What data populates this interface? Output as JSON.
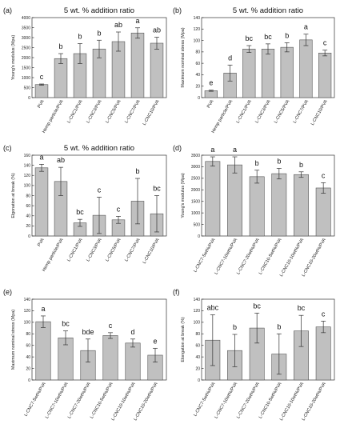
{
  "chart_data": [
    {
      "type": "bar",
      "panel_label": "(a)",
      "title": "5 wt. % addition ratio",
      "ylabel": "Young's modulus (Mpa)",
      "ylim": [
        0,
        4000
      ],
      "yticks": [
        0,
        500,
        1000,
        1500,
        2000,
        2500,
        3000,
        3500,
        4000
      ],
      "categories": [
        "PVA",
        "Hemp particle/PVA",
        "L-CNC1/PVA",
        "L-CNC3/PVA",
        "L-CNC5/PVA",
        "L-CNC7/PVA",
        "L-CNC10/PVA"
      ],
      "values": [
        650,
        1950,
        2200,
        2430,
        2800,
        3230,
        2720
      ],
      "errors": [
        30,
        250,
        500,
        440,
        480,
        260,
        300
      ],
      "letters": [
        "c",
        "b",
        "b",
        "b",
        "ab",
        "a",
        "ab"
      ]
    },
    {
      "type": "bar",
      "panel_label": "(b)",
      "title": "5 wt. % addition ratio",
      "ylabel": "Maximum nominal stress (Mpa)",
      "ylim": [
        0,
        140
      ],
      "yticks": [
        0,
        20,
        40,
        60,
        80,
        100,
        120,
        140
      ],
      "categories": [
        "PVA",
        "Hemp particle/PVA",
        "L-CNC1/PVA",
        "L-CNC3/PVA",
        "L-CNC5/PVA",
        "L-CNC7/PVA",
        "L-CNC10/PVA"
      ],
      "values": [
        12,
        43,
        85,
        85,
        88,
        101,
        78
      ],
      "errors": [
        1,
        14,
        6,
        9,
        8,
        10,
        5
      ],
      "letters": [
        "e",
        "d",
        "bc",
        "bc",
        "b",
        "a",
        "c"
      ]
    },
    {
      "type": "bar",
      "panel_label": "(c)",
      "title": "5 wt. % addition ratio",
      "ylabel": "Elgonation at break (%)",
      "ylim": [
        0,
        160
      ],
      "yticks": [
        0,
        20,
        40,
        60,
        80,
        100,
        120,
        140,
        160
      ],
      "categories": [
        "PVA",
        "Hemp particle/PVA",
        "L-CNC1/PVA",
        "L-CNC3/PVA",
        "L-CNC5/PVA",
        "L-CNC7/PVA",
        "L-CNC10/PVA"
      ],
      "values": [
        135,
        108,
        26,
        41,
        32,
        69,
        44
      ],
      "errors": [
        7,
        28,
        7,
        36,
        7,
        45,
        36
      ],
      "letters": [
        "a",
        "ab",
        "bc",
        "c",
        "c",
        "b",
        "bc"
      ]
    },
    {
      "type": "bar",
      "panel_label": "(d)",
      "title": "",
      "ylabel": "Young's modulus (Mpa)",
      "ylim": [
        0,
        3500
      ],
      "yticks": [
        0,
        500,
        1000,
        1500,
        2000,
        2500,
        3000,
        3500
      ],
      "categories": [
        "L-CNC7-5wt%/PVA",
        "L-CNC7-10wt%/PVA",
        "L-CNC7-20wt%/PVA",
        "L-CNC10-5wt%/PVA",
        "L-CNC10-10wt%/PVA",
        "L-CNC10-20wt%/PVA"
      ],
      "values": [
        3230,
        3080,
        2570,
        2700,
        2660,
        2080
      ],
      "errors": [
        200,
        350,
        280,
        230,
        120,
        230
      ],
      "letters": [
        "a",
        "a",
        "b",
        "b",
        "b",
        "c"
      ]
    },
    {
      "type": "bar",
      "panel_label": "(e)",
      "title": "",
      "ylabel": "Maximum nominal stress (Mpa)",
      "ylim": [
        0,
        140
      ],
      "yticks": [
        0,
        20,
        40,
        60,
        80,
        100,
        120,
        140
      ],
      "categories": [
        "L-CNC7-5wt%/PVA",
        "L-CNC7-10wt%/PVA",
        "L-CNC7-20wt%/PVA",
        "L-CNC10-5wt%/PVA",
        "L-CNC10-10wt%/PVA",
        "L-CNC10-20wt%/PVA"
      ],
      "values": [
        101,
        73,
        51,
        77,
        64,
        43
      ],
      "errors": [
        10,
        12,
        20,
        5,
        7,
        12
      ],
      "letters": [
        "a",
        "bc",
        "bde",
        "c",
        "d",
        "e"
      ]
    },
    {
      "type": "bar",
      "panel_label": "(f)",
      "title": "",
      "ylabel": "Elongation at break (%)",
      "ylim": [
        0,
        140
      ],
      "yticks": [
        0,
        20,
        40,
        60,
        80,
        100,
        120,
        140
      ],
      "categories": [
        "L-CNC7-5wt%/PVA",
        "L-CNC7-10wt%/PVA",
        "L-CNC7-20wt%/PVA",
        "L-CNC10-5wt%/PVA",
        "L-CNC10-10wt%/PVA",
        "L-CNC10-20wt%/PVA"
      ],
      "values": [
        69,
        51,
        90,
        45,
        85,
        92
      ],
      "errors": [
        44,
        28,
        26,
        35,
        27,
        10
      ],
      "letters": [
        "abc",
        "b",
        "bc",
        "b",
        "bc",
        "c"
      ]
    }
  ]
}
